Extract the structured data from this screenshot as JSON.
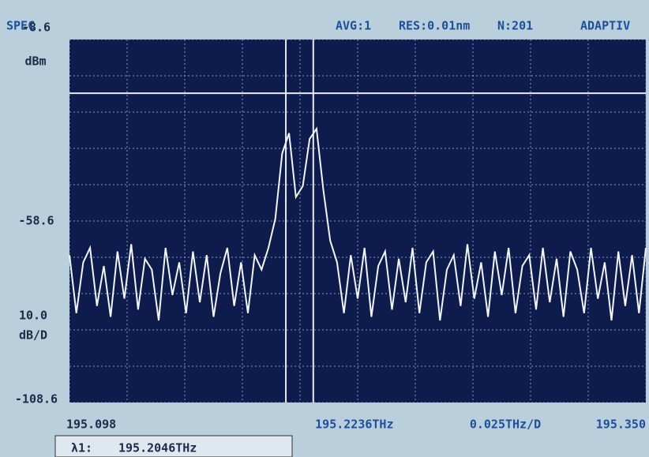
{
  "chart_data": {
    "type": "line",
    "header": [
      "SPEC",
      "AVG:1",
      "RES:0.01nm",
      "N:201",
      "ADAPTIV"
    ],
    "y_unit": "dBm",
    "y_scale": [
      "10.0",
      "dB/D"
    ],
    "x_scale": "0.025THz/D",
    "readout": {
      "label": "λ1:",
      "value": "195.2046THz"
    },
    "xlim": [
      195.098,
      195.35
    ],
    "ylim": [
      -108.6,
      -8.6
    ],
    "xticks": [
      {
        "value": 195.098,
        "label": "195.098"
      },
      {
        "value": 195.2236,
        "label": "195.2236THz"
      },
      {
        "value": 195.35,
        "label": "195.350"
      }
    ],
    "yticks": [
      -8.6,
      -58.6,
      -108.6
    ],
    "xgrid": [
      195.098,
      195.1232,
      195.1484,
      195.1736,
      195.1988,
      195.224,
      195.2492,
      195.2744,
      195.2996,
      195.3248,
      195.35
    ],
    "ygrid": [
      -8.6,
      -18.6,
      -28.6,
      -38.6,
      -48.6,
      -58.6,
      -68.6,
      -78.6,
      -88.6,
      -98.6,
      -108.6
    ],
    "markers": {
      "x": [
        195.1926,
        195.2046
      ],
      "y": -23.4
    },
    "x": [
      195.098,
      195.101,
      195.104,
      195.107,
      195.11,
      195.113,
      195.116,
      195.119,
      195.122,
      195.125,
      195.128,
      195.131,
      195.134,
      195.137,
      195.14,
      195.143,
      195.146,
      195.149,
      195.152,
      195.155,
      195.158,
      195.161,
      195.164,
      195.167,
      195.17,
      195.173,
      195.176,
      195.179,
      195.182,
      195.185,
      195.188,
      195.191,
      195.194,
      195.197,
      195.2,
      195.203,
      195.206,
      195.209,
      195.212,
      195.215,
      195.218,
      195.221,
      195.224,
      195.227,
      195.23,
      195.233,
      195.236,
      195.239,
      195.242,
      195.245,
      195.248,
      195.251,
      195.254,
      195.257,
      195.26,
      195.263,
      195.266,
      195.269,
      195.272,
      195.275,
      195.278,
      195.281,
      195.284,
      195.287,
      195.29,
      195.293,
      195.296,
      195.299,
      195.302,
      195.305,
      195.308,
      195.311,
      195.314,
      195.317,
      195.32,
      195.323,
      195.326,
      195.329,
      195.332,
      195.335,
      195.338,
      195.341,
      195.344,
      195.347,
      195.35
    ],
    "series": [
      {
        "color": "#f2f4ff",
        "values": [
          -68,
          -84,
          -70,
          -66,
          -82,
          -71,
          -85,
          -67,
          -80,
          -65,
          -83,
          -69,
          -72,
          -86,
          -66,
          -79,
          -70,
          -84,
          -67,
          -81,
          -68,
          -85,
          -73,
          -66,
          -82,
          -70,
          -84,
          -68,
          -72,
          -66,
          -58,
          -40,
          -34.4,
          -52,
          -49,
          -36,
          -33.2,
          -50,
          -64,
          -70,
          -84,
          -68,
          -80,
          -66,
          -85,
          -71,
          -67,
          -83,
          -69,
          -81,
          -66,
          -84,
          -70,
          -67,
          -86,
          -72,
          -68,
          -82,
          -65,
          -80,
          -70,
          -85,
          -67,
          -79,
          -66,
          -84,
          -71,
          -68,
          -83,
          -66,
          -81,
          -69,
          -85,
          -67,
          -72,
          -84,
          -66,
          -80,
          -70,
          -86,
          -67,
          -82,
          -68,
          -84,
          -66
        ]
      }
    ]
  }
}
